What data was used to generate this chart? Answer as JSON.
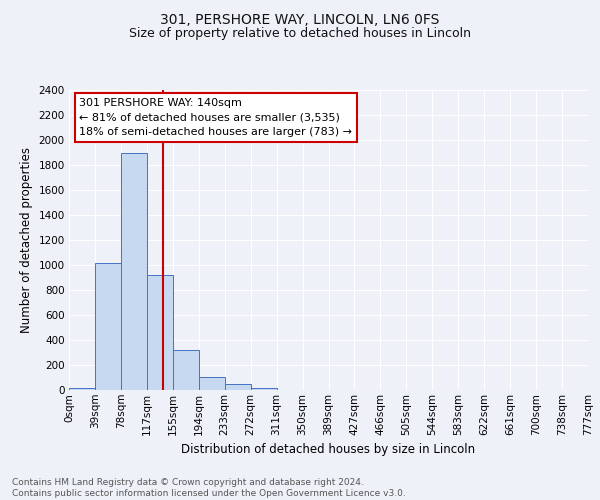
{
  "title": "301, PERSHORE WAY, LINCOLN, LN6 0FS",
  "subtitle": "Size of property relative to detached houses in Lincoln",
  "xlabel": "Distribution of detached houses by size in Lincoln",
  "ylabel": "Number of detached properties",
  "bin_labels": [
    "0sqm",
    "39sqm",
    "78sqm",
    "117sqm",
    "155sqm",
    "194sqm",
    "233sqm",
    "272sqm",
    "311sqm",
    "350sqm",
    "389sqm",
    "427sqm",
    "466sqm",
    "505sqm",
    "544sqm",
    "583sqm",
    "622sqm",
    "661sqm",
    "700sqm",
    "738sqm",
    "777sqm"
  ],
  "bar_values": [
    20,
    1020,
    1900,
    920,
    320,
    105,
    50,
    20,
    0,
    0,
    0,
    0,
    0,
    0,
    0,
    0,
    0,
    0,
    0,
    0
  ],
  "bar_color": "#c6d9f0",
  "bar_edge_color": "#4472c4",
  "property_line_color": "#cc0000",
  "ylim": [
    0,
    2400
  ],
  "yticks": [
    0,
    200,
    400,
    600,
    800,
    1000,
    1200,
    1400,
    1600,
    1800,
    2000,
    2200,
    2400
  ],
  "annotation_line1": "301 PERSHORE WAY: 140sqm",
  "annotation_line2": "← 81% of detached houses are smaller (3,535)",
  "annotation_line3": "18% of semi-detached houses are larger (783) →",
  "annotation_box_color": "#ffffff",
  "annotation_box_edge": "#cc0000",
  "footer_text": "Contains HM Land Registry data © Crown copyright and database right 2024.\nContains public sector information licensed under the Open Government Licence v3.0.",
  "bg_color": "#eef2f8",
  "grid_color": "#ffffff",
  "title_fontsize": 10,
  "subtitle_fontsize": 9,
  "axis_label_fontsize": 8.5,
  "tick_fontsize": 7.5,
  "annotation_fontsize": 8,
  "footer_fontsize": 6.5
}
